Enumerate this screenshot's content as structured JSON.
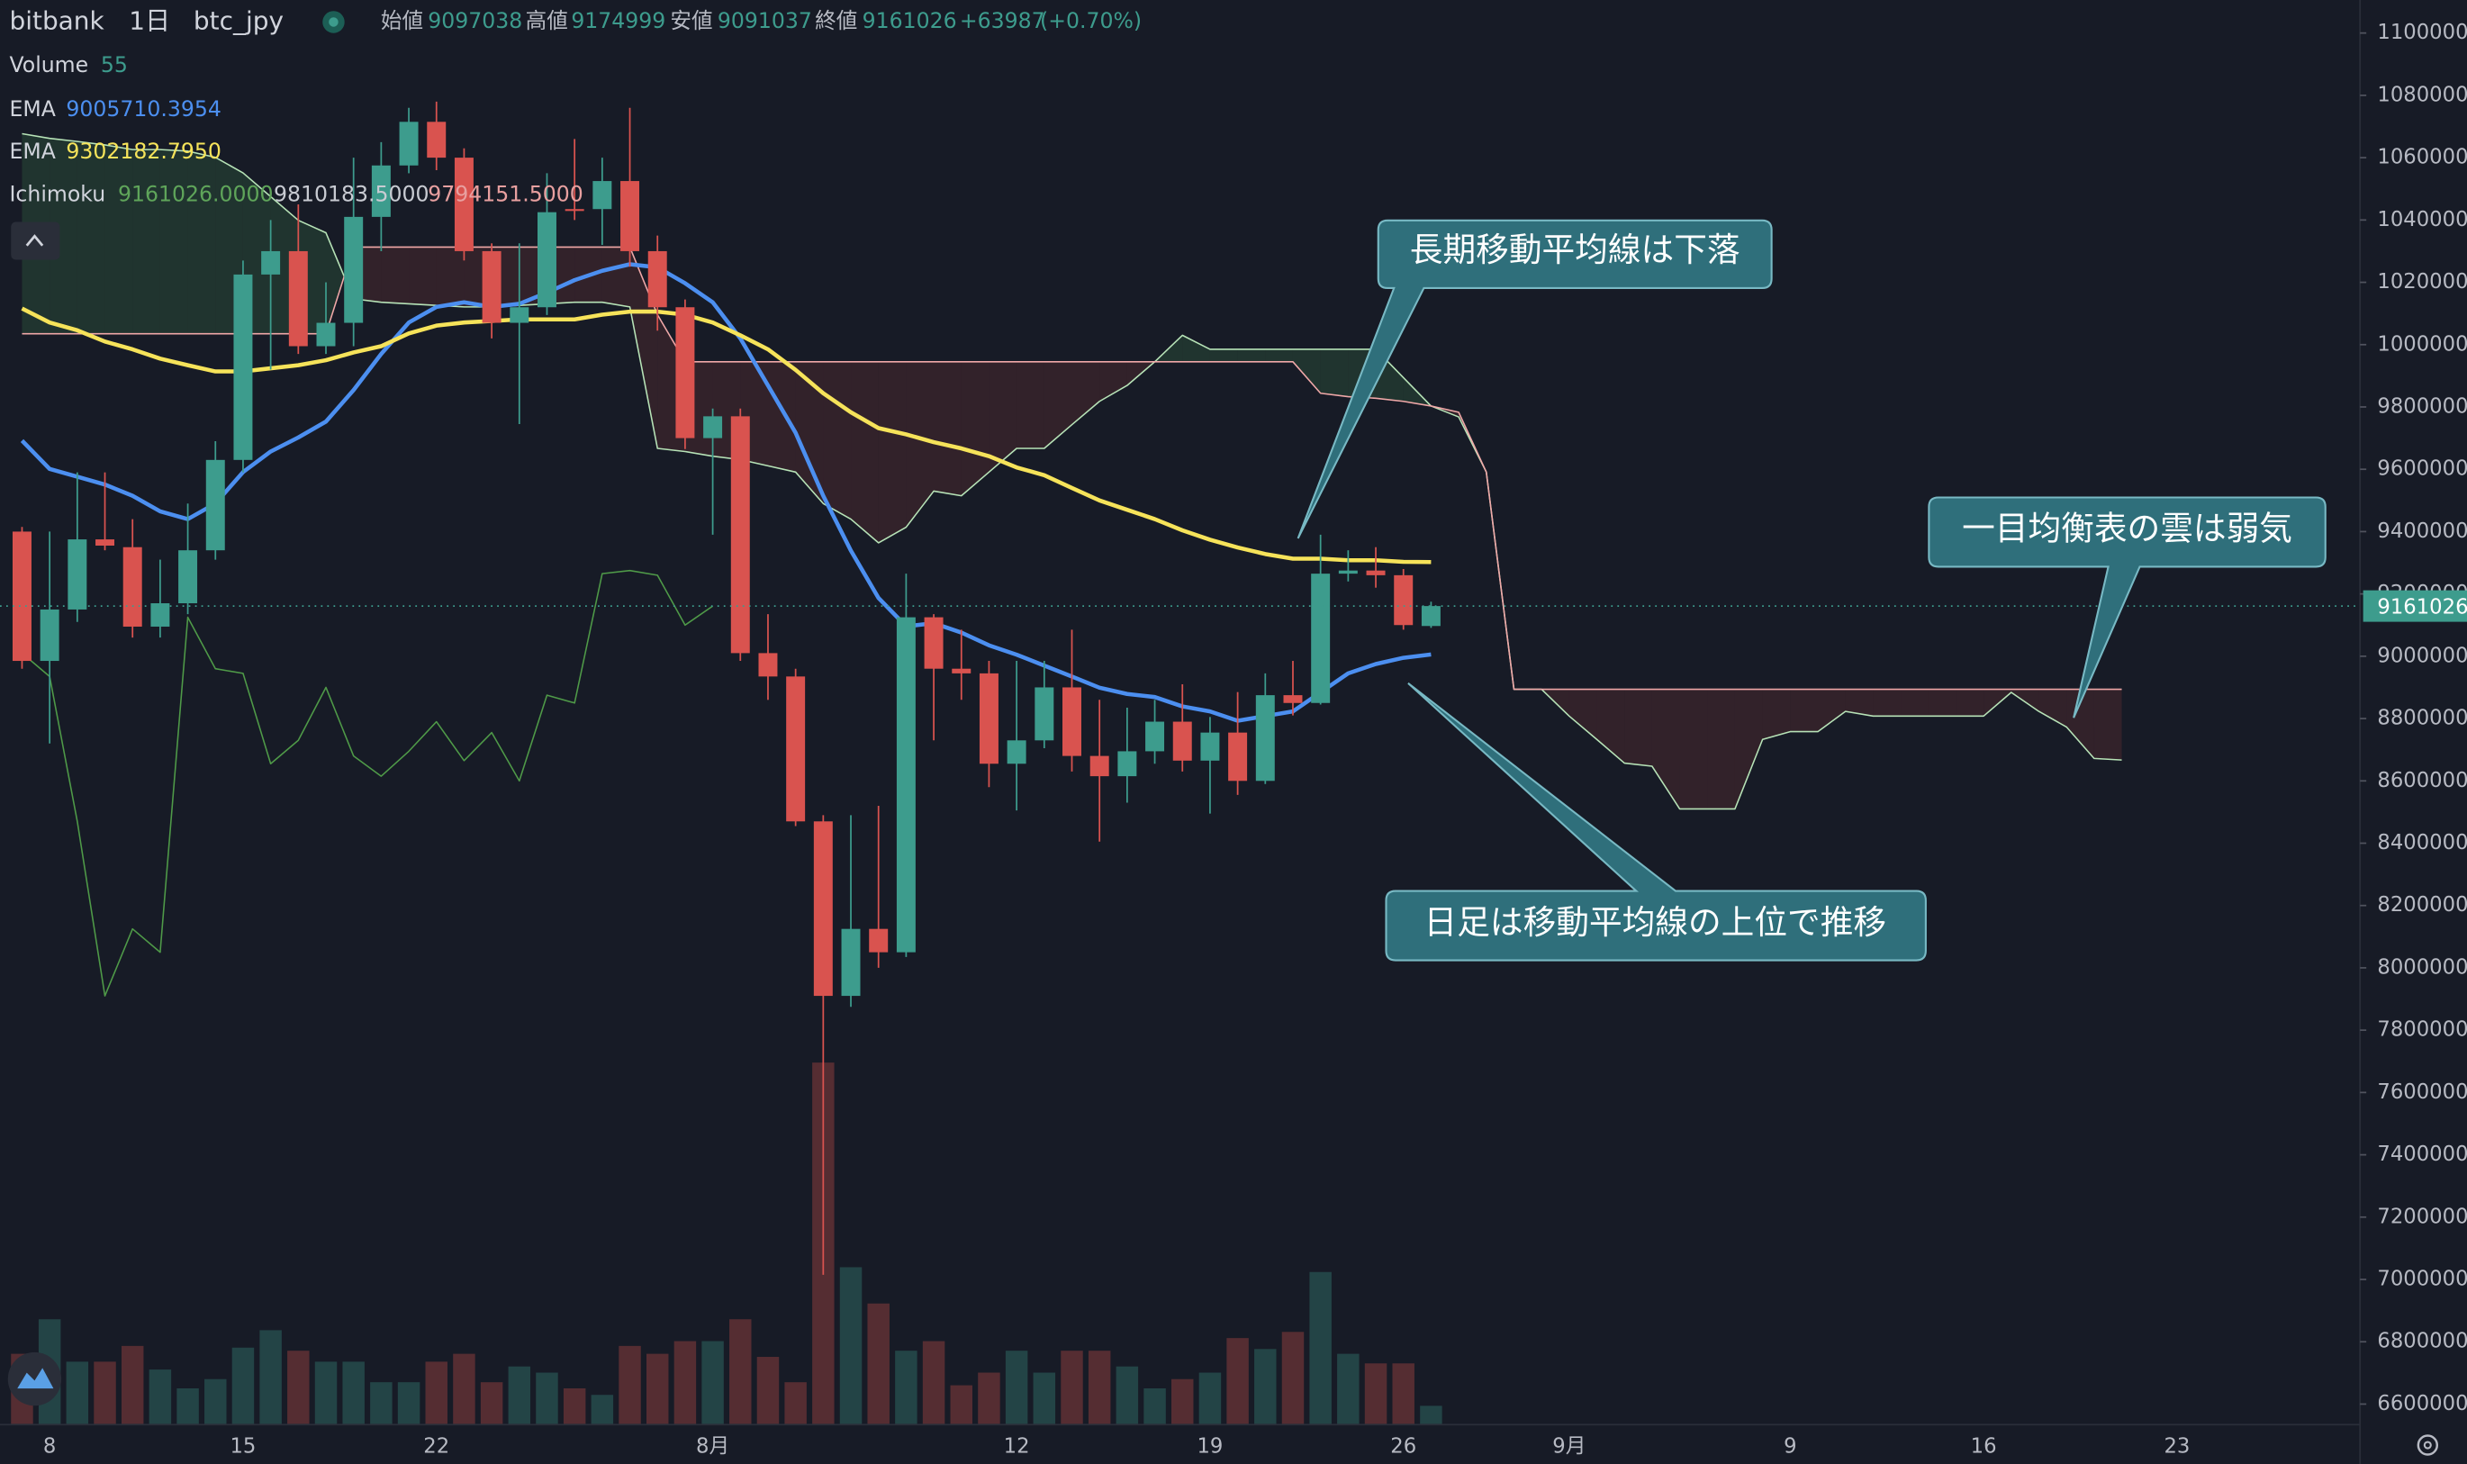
{
  "chart_data": {
    "type": "candlestick",
    "symbol": "bitbank",
    "interval": "1日",
    "pair": "btc_jpy",
    "ohlc_labels": [
      "始値",
      "高値",
      "安値",
      "終値"
    ],
    "change": {
      "value": 63987,
      "label": "+63987"
    },
    "change_pct": {
      "value": 0.7,
      "label": "(+0.70%)"
    },
    "up_color": "#3d9c8d",
    "down_color": "#d9534f",
    "categories": [
      null,
      "8",
      null,
      null,
      null,
      null,
      null,
      null,
      "15",
      null,
      null,
      null,
      null,
      null,
      null,
      "22",
      null,
      null,
      null,
      null,
      null,
      null,
      null,
      null,
      null,
      "8月",
      null,
      null,
      null,
      null,
      null,
      null,
      null,
      null,
      null,
      null,
      "12",
      null,
      null,
      null,
      null,
      null,
      null,
      "19",
      null,
      null,
      null,
      null,
      null,
      null,
      "26",
      null,
      null,
      null,
      null,
      null,
      "9月",
      null,
      null,
      null,
      null,
      null,
      null,
      null,
      "9",
      null,
      null,
      null,
      null,
      null,
      null,
      "16",
      null,
      null,
      null,
      null,
      null,
      null,
      "23"
    ],
    "open": [
      9400000,
      8985000,
      9150000,
      9375000,
      9350000,
      9095000,
      9170000,
      9340000,
      9630000,
      10225000,
      10300000,
      9995000,
      10070000,
      10410000,
      10575000,
      10715000,
      10600000,
      10300000,
      10070000,
      10120000,
      10435000,
      10435000,
      10525000,
      10300000,
      10120000,
      9700000,
      9770000,
      9010000,
      8935000,
      8470000,
      7910000,
      8125000,
      8050000,
      9125000,
      8960000,
      8945000,
      8655000,
      8730000,
      8900000,
      8680000,
      8615000,
      8695000,
      8790000,
      8665000,
      8755000,
      8600000,
      8875000,
      8850000,
      9265000,
      9275000,
      9260000,
      9097038,
      null,
      null,
      null,
      null,
      null,
      null,
      null,
      null,
      null,
      null,
      null,
      null,
      null,
      null,
      null,
      null,
      null,
      null,
      null,
      null,
      null,
      null,
      null,
      null,
      null,
      null,
      null
    ],
    "high": [
      9415000,
      9400000,
      9590000,
      9590000,
      9440000,
      9310000,
      9490000,
      9690000,
      10270000,
      10400000,
      10450000,
      10200000,
      10600000,
      10650000,
      10760000,
      10780000,
      10630000,
      10325000,
      10325000,
      10550000,
      10660000,
      10600000,
      10760000,
      10350000,
      10145000,
      9795000,
      9795000,
      9135000,
      8960000,
      8490000,
      8490000,
      8520000,
      9265000,
      9135000,
      9085000,
      8985000,
      8985000,
      8985000,
      9085000,
      8860000,
      8835000,
      8860000,
      8910000,
      8805000,
      8885000,
      8945000,
      8985000,
      9390000,
      9340000,
      9350000,
      9280000,
      9174999,
      null,
      null,
      null,
      null,
      null,
      null,
      null,
      null,
      null,
      null,
      null,
      null,
      null,
      null,
      null,
      null,
      null,
      null,
      null,
      null,
      null,
      null,
      null,
      null,
      null,
      null,
      null
    ],
    "low": [
      8960000,
      8720000,
      9110000,
      9340000,
      9060000,
      9060000,
      9135000,
      9310000,
      9590000,
      9920000,
      9970000,
      9970000,
      9995000,
      10300000,
      10550000,
      10560000,
      10270000,
      10020000,
      9745000,
      10095000,
      10400000,
      10320000,
      10250000,
      10045000,
      9665000,
      9390000,
      8985000,
      8860000,
      8455000,
      7015000,
      7875000,
      8000000,
      8035000,
      8730000,
      8860000,
      8580000,
      8505000,
      8705000,
      8630000,
      8405000,
      8530000,
      8655000,
      8630000,
      8495000,
      8555000,
      8590000,
      8810000,
      8845000,
      9240000,
      9220000,
      9085000,
      9091037,
      null,
      null,
      null,
      null,
      null,
      null,
      null,
      null,
      null,
      null,
      null,
      null,
      null,
      null,
      null,
      null,
      null,
      null,
      null,
      null,
      null,
      null,
      null,
      null,
      null,
      null,
      null
    ],
    "close": [
      8985000,
      9150000,
      9375000,
      9355000,
      9095000,
      9170000,
      9340000,
      9630000,
      10225000,
      10300000,
      9995000,
      10070000,
      10410000,
      10575000,
      10715000,
      10600000,
      10300000,
      10070000,
      10120000,
      10425000,
      10430000,
      10525000,
      10300000,
      10120000,
      9700000,
      9770000,
      9010000,
      8935000,
      8470000,
      7910000,
      8125000,
      8050000,
      9125000,
      8960000,
      8945000,
      8655000,
      8730000,
      8900000,
      8680000,
      8615000,
      8695000,
      8790000,
      8665000,
      8755000,
      8600000,
      8875000,
      8850000,
      9265000,
      9275000,
      9260000,
      9100000,
      9161026,
      null,
      null,
      null,
      null,
      null,
      null,
      null,
      null,
      null,
      null,
      null,
      null,
      null,
      null,
      null,
      null,
      null,
      null,
      null,
      null,
      null,
      null,
      null,
      null,
      null,
      null,
      null
    ],
    "volume": {
      "name": "Volume",
      "values": [
        207,
        308,
        184,
        184,
        230,
        161,
        106,
        133,
        225,
        276,
        216,
        184,
        184,
        124,
        124,
        184,
        207,
        124,
        170,
        152,
        106,
        87,
        230,
        207,
        244,
        244,
        308,
        198,
        124,
        1058,
        460,
        354,
        216,
        244,
        115,
        152,
        216,
        152,
        216,
        216,
        170,
        106,
        133,
        152,
        253,
        221,
        271,
        446,
        207,
        179,
        179,
        55,
        null,
        null,
        null,
        null,
        null,
        null,
        null,
        null,
        null,
        null,
        null,
        null,
        null,
        null,
        null,
        null,
        null,
        null,
        null,
        null,
        null,
        null,
        null,
        null,
        null,
        null,
        null
      ]
    },
    "series": [
      {
        "name": "EMA",
        "color": "#4c8ff0",
        "legend_value": {
          "value": 9005710.3954,
          "label": "9005710.3954"
        },
        "values": [
          9692000,
          9601000,
          9576000,
          9551000,
          9515000,
          9465000,
          9440000,
          9490000,
          9591000,
          9657000,
          9702000,
          9753000,
          9854000,
          9970000,
          10071000,
          10121000,
          10136000,
          10121000,
          10131000,
          10167000,
          10207000,
          10237000,
          10258000,
          10248000,
          10197000,
          10136000,
          10020000,
          9869000,
          9717000,
          9515000,
          9339000,
          9187000,
          9096000,
          9106000,
          9076000,
          9035000,
          9005000,
          8970000,
          8935000,
          8899000,
          8879000,
          8869000,
          8839000,
          8823000,
          8793000,
          8808000,
          8823000,
          8884000,
          8945000,
          8975000,
          8995000,
          9005710.3954,
          null,
          null,
          null,
          null,
          null,
          null,
          null,
          null,
          null,
          null,
          null,
          null,
          null,
          null,
          null,
          null,
          null,
          null,
          null,
          null,
          null,
          null,
          null,
          null,
          null,
          null,
          null
        ]
      },
      {
        "name": "EMA",
        "color": "#f6e35a",
        "legend_value": {
          "value": 9302182.795,
          "label": "9302182.7950"
        },
        "values": [
          10116000,
          10071000,
          10046000,
          10010000,
          9985000,
          9955000,
          9934000,
          9914000,
          9914000,
          9924000,
          9934000,
          9950000,
          9975000,
          9995000,
          10036000,
          10061000,
          10071000,
          10076000,
          10081000,
          10081000,
          10081000,
          10096000,
          10106000,
          10106000,
          10096000,
          10071000,
          10030000,
          9985000,
          9919000,
          9844000,
          9783000,
          9732000,
          9712000,
          9687000,
          9667000,
          9642000,
          9606000,
          9581000,
          9540000,
          9500000,
          9470000,
          9440000,
          9404000,
          9374000,
          9349000,
          9328000,
          9313000,
          9313000,
          9308000,
          9308000,
          9303000,
          9302182.795,
          null,
          null,
          null,
          null,
          null,
          null,
          null,
          null,
          null,
          null,
          null,
          null,
          null,
          null,
          null,
          null,
          null,
          null,
          null,
          null,
          null,
          null,
          null,
          null,
          null,
          null,
          null
        ]
      }
    ],
    "ichimoku": {
      "name": "Ichimoku",
      "legend_values": [
        {
          "value": 9161026,
          "label": "9161026.0000"
        },
        {
          "value": 9810183.5,
          "label": "9810183.5000"
        },
        {
          "value": 9794151.5,
          "label": "9794151.5000"
        }
      ],
      "legend_colors": [
        "#5fa55a",
        "#c8cbd2",
        "#e8a0a0"
      ],
      "lagging_color": "#4f9a48",
      "cloud_up": "rgba(70,140,80,0.22)",
      "cloud_down": "rgba(150,60,60,0.22)",
      "span_a": {
        "color": "#b7e3b7",
        "values": [
          10677000,
          10662000,
          10652000,
          10641000,
          10626000,
          10626000,
          10621000,
          10601000,
          10551000,
          10475000,
          10399000,
          10359000,
          10147000,
          10136000,
          10131000,
          10126000,
          10121000,
          10121000,
          10126000,
          10131000,
          10136000,
          10136000,
          10121000,
          9667000,
          9657000,
          9642000,
          9631000,
          9611000,
          9591000,
          9490000,
          9440000,
          9364000,
          9414000,
          9530000,
          9515000,
          9591000,
          9667000,
          9667000,
          9743000,
          9818000,
          9869000,
          9945000,
          10030000,
          9985000,
          9985000,
          9985000,
          9985000,
          9985000,
          9985000,
          9985000,
          9894000,
          9803000,
          9768000,
          9591000,
          8894000,
          8894000,
          8808000,
          8733000,
          8657000,
          8647000,
          8510000,
          8510000,
          8510000,
          8733000,
          8758000,
          8758000,
          8823000,
          8808000,
          8808000,
          8808000,
          8808000,
          8808000,
          8884000,
          8823000,
          8773000,
          8672000,
          8667000,
          null,
          null
        ]
      },
      "span_b": {
        "color": "#f0a8a8",
        "values": [
          10035000,
          10035000,
          10035000,
          10035000,
          10035000,
          10035000,
          10035000,
          10035000,
          10035000,
          10035000,
          10035000,
          10035000,
          10313000,
          10313000,
          10313000,
          10313000,
          10313000,
          10313000,
          10313000,
          10313000,
          10313000,
          10313000,
          10313000,
          10096000,
          9945000,
          9945000,
          9945000,
          9945000,
          9945000,
          9945000,
          9945000,
          9945000,
          9945000,
          9945000,
          9945000,
          9945000,
          9945000,
          9945000,
          9945000,
          9945000,
          9945000,
          9945000,
          9945000,
          9945000,
          9945000,
          9945000,
          9945000,
          9844000,
          9833000,
          9828000,
          9818000,
          9803000,
          9783000,
          9591000,
          8894000,
          8894000,
          8894000,
          8894000,
          8894000,
          8894000,
          8894000,
          8894000,
          8894000,
          8894000,
          8894000,
          8894000,
          8894000,
          8894000,
          8894000,
          8894000,
          8894000,
          8894000,
          8894000,
          8894000,
          8894000,
          8894000,
          8894000,
          null,
          null
        ]
      }
    },
    "ylim": [
      6534000,
      11106000
    ],
    "yticks": [
      6600000,
      6800000,
      7000000,
      7200000,
      7400000,
      7600000,
      7800000,
      8000000,
      8200000,
      8400000,
      8600000,
      8800000,
      9000000,
      9200000,
      9400000,
      9600000,
      9800000,
      10000000,
      10200000,
      10400000,
      10600000,
      10800000,
      11000000
    ],
    "annotations": [
      "長期移動平均線は下落",
      "一目均衡表の雲は弱気",
      "日足は移動平均線の上位で推移"
    ]
  }
}
